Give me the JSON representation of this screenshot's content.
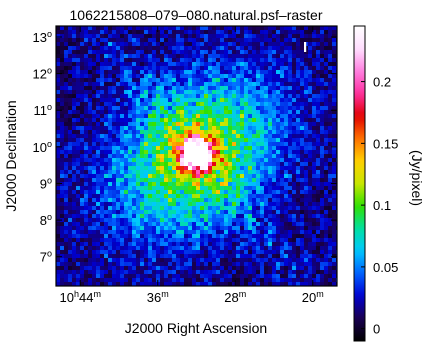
{
  "chart_data": {
    "type": "heatmap",
    "title": "1062215808–079–080.natural.psf–raster",
    "stokes_label": "I",
    "xlabel": "J2000 Right Ascension",
    "ylabel": "J2000 Declination",
    "colorbar_label": "(Jy/pixel)",
    "x_ticks": [
      {
        "base": "10",
        "sup1": "h",
        "mid": "44",
        "sup2": "m",
        "value_min": 644
      },
      {
        "base": "36",
        "sup1": "m",
        "value_min": 636
      },
      {
        "base": "28",
        "sup1": "m",
        "value_min": 628
      },
      {
        "base": "20",
        "sup1": "m",
        "value_min": 620
      }
    ],
    "y_ticks": [
      {
        "base": "7",
        "sup": "o",
        "value": 7
      },
      {
        "base": "8",
        "sup": "o",
        "value": 8
      },
      {
        "base": "9",
        "sup": "o",
        "value": 9
      },
      {
        "base": "10",
        "sup": "o",
        "value": 10
      },
      {
        "base": "11",
        "sup": "o",
        "value": 11
      },
      {
        "base": "12",
        "sup": "o",
        "value": 12
      },
      {
        "base": "13",
        "sup": "o",
        "value": 13
      }
    ],
    "colorbar_ticks": [
      {
        "label": "0",
        "value": 0
      },
      {
        "label": "0.05",
        "value": 0.05
      },
      {
        "label": "0.1",
        "value": 0.1
      },
      {
        "label": "0.15",
        "value": 0.15
      },
      {
        "label": "0.2",
        "value": 0.2
      }
    ],
    "colorbar_range": [
      -0.01,
      0.245
    ],
    "xlim_ra_minutes": [
      646.5,
      617.5
    ],
    "ylim_deg": [
      6.2,
      13.3
    ],
    "peak": {
      "ra_minutes": 632.0,
      "dec_deg": 9.8,
      "value": 0.24
    },
    "grid": false,
    "colormap": [
      "#000000",
      "#1a0050",
      "#0000d0",
      "#0060ff",
      "#00c8ff",
      "#00e0a0",
      "#30e000",
      "#c8e600",
      "#ffd000",
      "#ff7000",
      "#e00000",
      "#ff30a0",
      "#ff80e0",
      "#ffe0ff",
      "#ffffff"
    ]
  }
}
